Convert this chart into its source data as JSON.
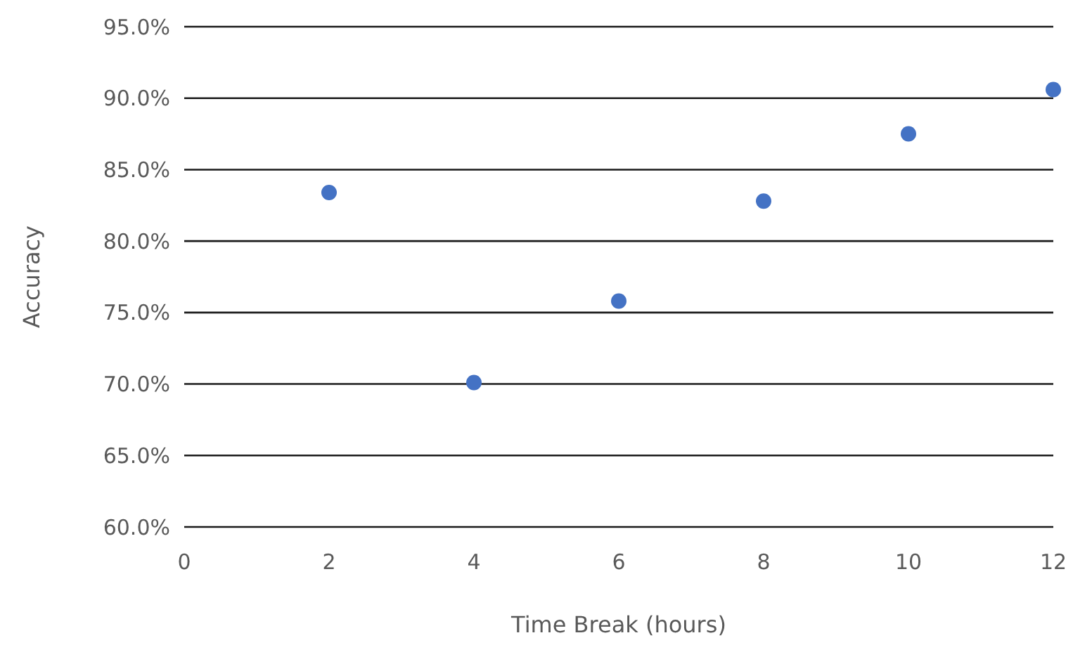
{
  "chart_data": {
    "type": "scatter",
    "xlabel": "Time Break (hours)",
    "ylabel": "Accuracy",
    "x": [
      2,
      4,
      6,
      8,
      10,
      12
    ],
    "series": [
      {
        "color": "#4472c4",
        "values": [
          83.4,
          70.1,
          75.8,
          82.8,
          87.5,
          90.6
        ]
      }
    ],
    "xlim": [
      0,
      12
    ],
    "xticks": [
      0,
      2,
      4,
      6,
      8,
      10,
      12
    ],
    "ylim": [
      60,
      95
    ],
    "yticks": [
      {
        "value": 60,
        "label": "60.0%"
      },
      {
        "value": 65,
        "label": "65.0%"
      },
      {
        "value": 70,
        "label": "70.0%"
      },
      {
        "value": 75,
        "label": "75.0%"
      },
      {
        "value": 80,
        "label": "80.0%"
      },
      {
        "value": 85,
        "label": "85.0%"
      },
      {
        "value": 90,
        "label": "90.0%"
      },
      {
        "value": 95,
        "label": "95.0%"
      }
    ],
    "grid": "y",
    "marker": "circle"
  }
}
